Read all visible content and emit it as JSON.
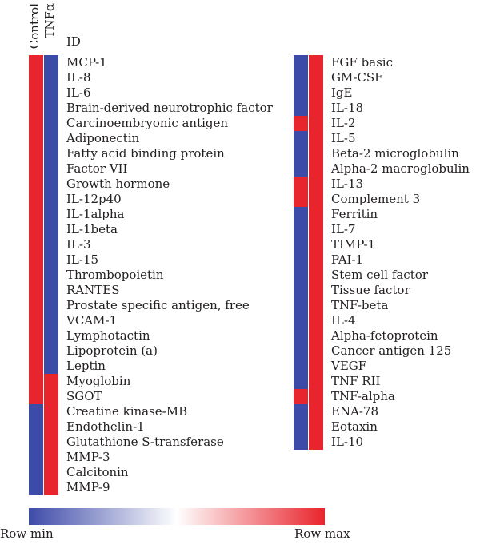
{
  "chart_data": {
    "type": "heatmap",
    "columns": [
      "Control",
      "TNFα"
    ],
    "id_header": "ID",
    "colors": {
      "min": "#3d4ba8",
      "mid": "#ffffff",
      "max": "#e8242c"
    },
    "legend": {
      "min_label": "Row min",
      "max_label": "Row max"
    },
    "left_rows": [
      {
        "id": "MCP-1",
        "values": [
          1,
          0
        ]
      },
      {
        "id": "IL-8",
        "values": [
          1,
          0
        ]
      },
      {
        "id": "IL-6",
        "values": [
          1,
          0
        ]
      },
      {
        "id": "Brain-derived neurotrophic factor",
        "values": [
          1,
          0
        ]
      },
      {
        "id": "Carcinoembryonic antigen",
        "values": [
          1,
          0
        ]
      },
      {
        "id": "Adiponectin",
        "values": [
          1,
          0
        ]
      },
      {
        "id": "Fatty acid binding protein",
        "values": [
          1,
          0
        ]
      },
      {
        "id": "Factor VII",
        "values": [
          1,
          0
        ]
      },
      {
        "id": "Growth hormone",
        "values": [
          1,
          0
        ]
      },
      {
        "id": "IL-12p40",
        "values": [
          1,
          0
        ]
      },
      {
        "id": "IL-1alpha",
        "values": [
          1,
          0
        ]
      },
      {
        "id": "IL-1beta",
        "values": [
          1,
          0
        ]
      },
      {
        "id": "IL-3",
        "values": [
          1,
          0
        ]
      },
      {
        "id": "IL-15",
        "values": [
          1,
          0
        ]
      },
      {
        "id": "Thrombopoietin",
        "values": [
          1,
          0
        ]
      },
      {
        "id": "RANTES",
        "values": [
          1,
          0
        ]
      },
      {
        "id": "Prostate specific antigen, free",
        "values": [
          1,
          0
        ]
      },
      {
        "id": "VCAM-1",
        "values": [
          1,
          0
        ]
      },
      {
        "id": "Lymphotactin",
        "values": [
          1,
          0
        ]
      },
      {
        "id": "Lipoprotein (a)",
        "values": [
          1,
          0
        ]
      },
      {
        "id": "Leptin",
        "values": [
          1,
          0
        ]
      },
      {
        "id": "Myoglobin",
        "values": [
          1,
          1
        ]
      },
      {
        "id": "SGOT",
        "values": [
          1,
          1
        ]
      },
      {
        "id": "Creatine kinase-MB",
        "values": [
          0,
          1
        ]
      },
      {
        "id": "Endothelin-1",
        "values": [
          0,
          1
        ]
      },
      {
        "id": "Glutathione S-transferase",
        "values": [
          0,
          1
        ]
      },
      {
        "id": "MMP-3",
        "values": [
          0,
          1
        ]
      },
      {
        "id": "Calcitonin",
        "values": [
          0,
          1
        ]
      },
      {
        "id": "MMP-9",
        "values": [
          0,
          1
        ]
      }
    ],
    "right_rows": [
      {
        "id": "FGF basic",
        "values": [
          0,
          1
        ]
      },
      {
        "id": "GM-CSF",
        "values": [
          0,
          1
        ]
      },
      {
        "id": "IgE",
        "values": [
          0,
          1
        ]
      },
      {
        "id": "IL-18",
        "values": [
          0,
          1
        ]
      },
      {
        "id": "IL-2",
        "values": [
          1,
          1
        ]
      },
      {
        "id": "IL-5",
        "values": [
          0,
          1
        ]
      },
      {
        "id": "Beta-2 microglobulin",
        "values": [
          0,
          1
        ]
      },
      {
        "id": "Alpha-2 macroglobulin",
        "values": [
          0,
          1
        ]
      },
      {
        "id": "IL-13",
        "values": [
          1,
          1
        ]
      },
      {
        "id": "Complement 3",
        "values": [
          1,
          1
        ]
      },
      {
        "id": "Ferritin",
        "values": [
          0,
          1
        ]
      },
      {
        "id": "IL-7",
        "values": [
          0,
          1
        ]
      },
      {
        "id": "TIMP-1",
        "values": [
          0,
          1
        ]
      },
      {
        "id": "PAI-1",
        "values": [
          0,
          1
        ]
      },
      {
        "id": "Stem cell factor",
        "values": [
          0,
          1
        ]
      },
      {
        "id": "Tissue factor",
        "values": [
          0,
          1
        ]
      },
      {
        "id": "TNF-beta",
        "values": [
          0,
          1
        ]
      },
      {
        "id": "IL-4",
        "values": [
          0,
          1
        ]
      },
      {
        "id": "Alpha-fetoprotein",
        "values": [
          0,
          1
        ]
      },
      {
        "id": "Cancer antigen 125",
        "values": [
          0,
          1
        ]
      },
      {
        "id": "VEGF",
        "values": [
          0,
          1
        ]
      },
      {
        "id": "TNF RII",
        "values": [
          0,
          1
        ]
      },
      {
        "id": "TNF-alpha",
        "values": [
          1,
          1
        ]
      },
      {
        "id": "ENA-78",
        "values": [
          0,
          1
        ]
      },
      {
        "id": "Eotaxin",
        "values": [
          0,
          1
        ]
      },
      {
        "id": "IL-10",
        "values": [
          0,
          1
        ]
      }
    ]
  }
}
